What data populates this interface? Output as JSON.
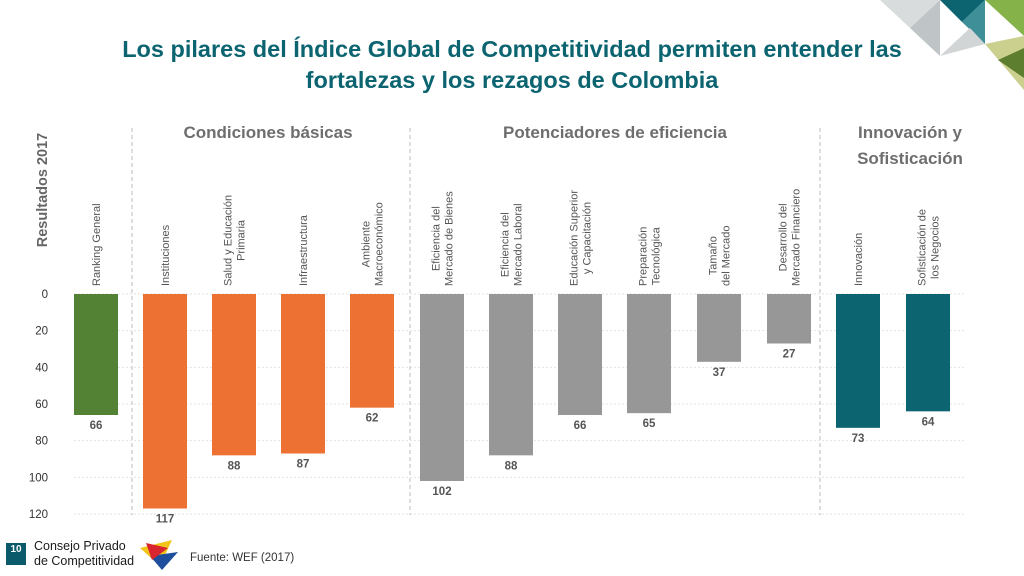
{
  "header": {
    "title_line1": "Los pilares del Índice Global de Competitividad permiten entender las",
    "title_line2": "fortalezas y los rezagos de Colombia"
  },
  "groups": {
    "basic": "Condiciones básicas",
    "efficiency": "Potenciadores de eficiencia",
    "innovation_line1": "Innovación y",
    "innovation_line2": "Sofisticación"
  },
  "footer": {
    "badge": "10",
    "brand_line1": "Consejo Privado",
    "brand_line2": "de Competitividad",
    "source": "Fuente: WEF (2017)"
  },
  "colors": {
    "general": "#548235",
    "basic": "#ed7132",
    "efficiency": "#979797",
    "innovation": "#0b6470",
    "title": "#0b6470"
  },
  "chart_data": {
    "type": "bar",
    "ylabel": "Resultados 2017",
    "ylim": [
      0,
      120
    ],
    "y_axis_inverted": true,
    "yticks": [
      "0",
      "20",
      "40",
      "60",
      "80",
      "100",
      "120"
    ],
    "grid": true,
    "categories": [
      [
        "Ranking General"
      ],
      [
        "Instituciones"
      ],
      [
        "Salud y Educación",
        "Primaria"
      ],
      [
        "Infraestructura"
      ],
      [
        "Ambiente",
        "Macroeconómico"
      ],
      [
        "Eficiencia del",
        "Mercado de Bienes"
      ],
      [
        "Eficiencia del",
        "Mercado Laboral"
      ],
      [
        "Educación Superior",
        "y Capacitación"
      ],
      [
        "Preparación",
        "Tecnológica"
      ],
      [
        "Tamaño",
        "del Mercado"
      ],
      [
        "Desarrollo del",
        "Mercado Financiero"
      ],
      [
        "Innovación"
      ],
      [
        "Sofisticación de",
        "los Negocios"
      ]
    ],
    "values": [
      66,
      117,
      88,
      87,
      62,
      102,
      88,
      66,
      65,
      37,
      27,
      73,
      64
    ],
    "value_labels": [
      "66",
      "117",
      "88",
      "87",
      "62",
      "102",
      "88",
      "66",
      "65",
      "37",
      "27",
      "73",
      "64"
    ],
    "groups": [
      "general",
      "basic",
      "basic",
      "basic",
      "basic",
      "efficiency",
      "efficiency",
      "efficiency",
      "efficiency",
      "efficiency",
      "efficiency",
      "innovation",
      "innovation"
    ]
  }
}
